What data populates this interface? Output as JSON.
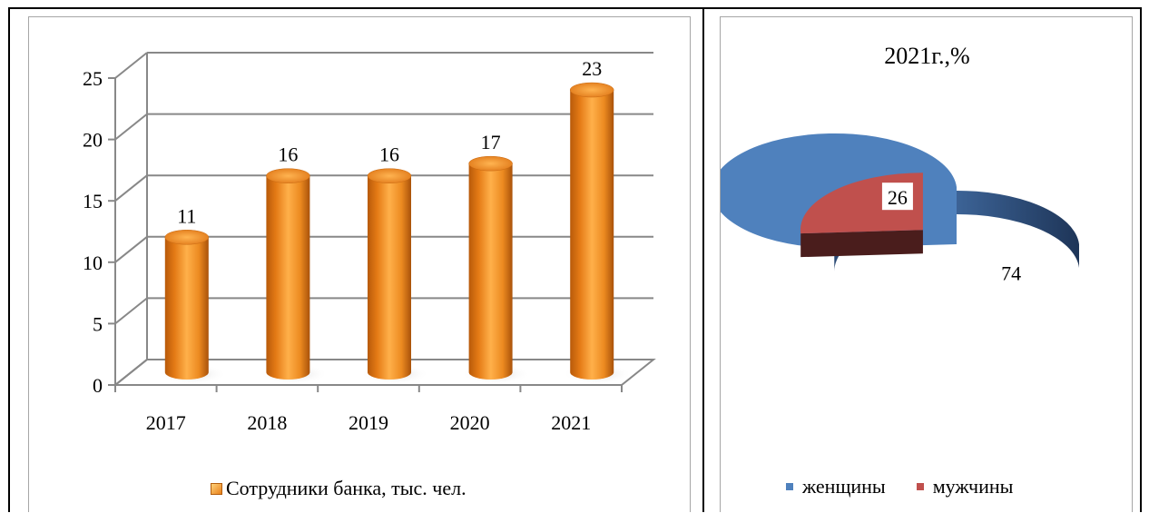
{
  "chart_data": [
    {
      "type": "bar",
      "categories": [
        "2017",
        "2018",
        "2019",
        "2020",
        "2021"
      ],
      "series": [
        {
          "name": "Сотрудники банка, тыс. чел.",
          "values": [
            11,
            16,
            16,
            17,
            23
          ]
        }
      ],
      "data_labels": [
        "11",
        "16",
        "16",
        "17",
        "23"
      ],
      "y_ticks": [
        "0",
        "5",
        "10",
        "15",
        "20",
        "25"
      ],
      "ylim": [
        0,
        25
      ],
      "grid": true,
      "legend_position": "bottom",
      "color": "#f08a1c"
    },
    {
      "type": "pie",
      "title": "2021г.,%",
      "slices": [
        {
          "name": "женщины",
          "value": 74,
          "label": "74",
          "color": "#4f81bd"
        },
        {
          "name": "мужчины",
          "value": 26,
          "label": "26",
          "color": "#c0504d"
        }
      ],
      "legend_position": "bottom"
    }
  ]
}
